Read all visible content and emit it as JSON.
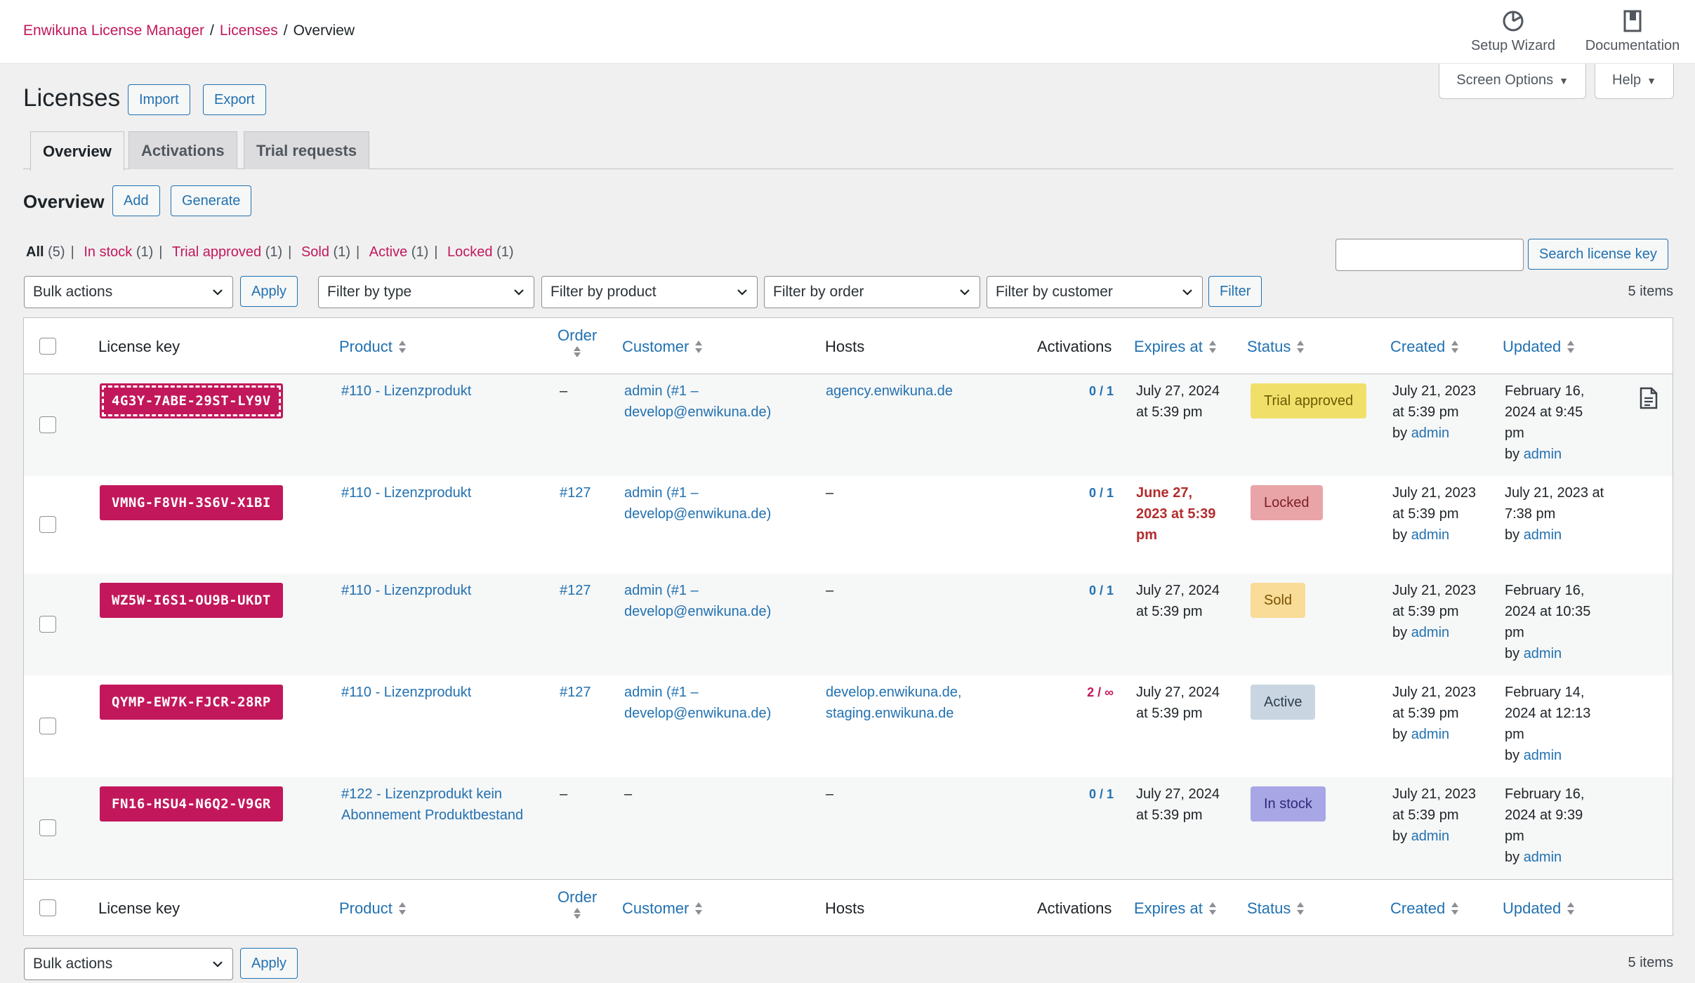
{
  "breadcrumb": {
    "home": "Enwikuna License Manager",
    "section": "Licenses",
    "current": "Overview",
    "separator": "/"
  },
  "top_actions": {
    "wizard_label": "Setup Wizard",
    "wizard_icon": "gauge-icon",
    "docs_label": "Documentation",
    "docs_icon": "book-icon"
  },
  "screen_tabs": {
    "screen_options": "Screen Options",
    "help": "Help"
  },
  "page": {
    "title": "Licenses",
    "import": "Import",
    "export": "Export"
  },
  "tabs": [
    "Overview",
    "Activations",
    "Trial requests"
  ],
  "section": {
    "title": "Overview",
    "add": "Add",
    "generate": "Generate"
  },
  "views": [
    {
      "label": "All",
      "count": "(5)"
    },
    {
      "label": "In stock",
      "count": "(1)"
    },
    {
      "label": "Trial approved",
      "count": "(1)"
    },
    {
      "label": "Sold",
      "count": "(1)"
    },
    {
      "label": "Active",
      "count": "(1)"
    },
    {
      "label": "Locked",
      "count": "(1)"
    }
  ],
  "search": {
    "value": "",
    "button": "Search license key"
  },
  "filters": {
    "bulk_actions": "Bulk actions",
    "apply": "Apply",
    "type": "Filter by type",
    "product": "Filter by product",
    "order": "Filter by order",
    "customer": "Filter by customer",
    "filter_button": "Filter",
    "items": "5 items"
  },
  "columns": {
    "license_key": "License key",
    "product": "Product",
    "order": "Order",
    "customer": "Customer",
    "hosts": "Hosts",
    "activations": "Activations",
    "expires_at": "Expires at",
    "status": "Status",
    "created": "Created",
    "updated": "Updated"
  },
  "rows": [
    {
      "key": "4G3Y-7ABE-29ST-LY9V",
      "product": "#110 - Lizenzprodukt",
      "order": "–",
      "customer_1": "admin (#1 –",
      "customer_2": "develop@enwikuna.de)",
      "host_1": "agency.enwikuna.de",
      "host_2": "",
      "activations": "0 / 1",
      "expires_1": "July 27, 2024",
      "expires_2": "at 5:39 pm",
      "expires_3": "",
      "status": "Trial approved",
      "status_bg": "#f0e06a",
      "status_fg": "#6b5a00",
      "created_1": "July 21, 2023",
      "created_2": "at 5:39 pm",
      "created_by": "by",
      "created_user": "admin",
      "updated_1": "February 16,",
      "updated_2": "2024 at 9:45",
      "updated_3": "pm",
      "updated_by": "by",
      "updated_user": "admin"
    },
    {
      "key": "VMNG-F8VH-3S6V-X1BI",
      "product": "#110 - Lizenzprodukt",
      "order": "#127",
      "customer_1": "admin (#1 –",
      "customer_2": "develop@enwikuna.de)",
      "host_1": "–",
      "host_2": "",
      "activations": "0 / 1",
      "expires_1": "June 27,",
      "expires_2": "2023 at 5:39",
      "expires_3": "pm",
      "status": "Locked",
      "status_bg": "#e9a4a8",
      "status_fg": "#7a1f23",
      "created_1": "July 21, 2023",
      "created_2": "at 5:39 pm",
      "created_by": "by",
      "created_user": "admin",
      "updated_1": "July 21, 2023 at",
      "updated_2": "7:38 pm",
      "updated_3": "",
      "updated_by": "by",
      "updated_user": "admin"
    },
    {
      "key": "WZ5W-I6S1-OU9B-UKDT",
      "product": "#110 - Lizenzprodukt",
      "order": "#127",
      "customer_1": "admin (#1 –",
      "customer_2": "develop@enwikuna.de)",
      "host_1": "–",
      "host_2": "",
      "activations": "0 / 1",
      "expires_1": "July 27, 2024",
      "expires_2": "at 5:39 pm",
      "expires_3": "",
      "status": "Sold",
      "status_bg": "#f8dc98",
      "status_fg": "#7a5300",
      "created_1": "July 21, 2023",
      "created_2": "at 5:39 pm",
      "created_by": "by",
      "created_user": "admin",
      "updated_1": "February 16,",
      "updated_2": "2024 at 10:35",
      "updated_3": "pm",
      "updated_by": "by",
      "updated_user": "admin"
    },
    {
      "key": "QYMP-EW7K-FJCR-28RP",
      "product": "#110 - Lizenzprodukt",
      "order": "#127",
      "customer_1": "admin (#1 –",
      "customer_2": "develop@enwikuna.de)",
      "host_1": "develop.enwikuna.de,",
      "host_2": "staging.enwikuna.de",
      "activations": "2 / ∞",
      "expires_1": "July 27, 2024",
      "expires_2": "at 5:39 pm",
      "expires_3": "",
      "status": "Active",
      "status_bg": "#c9d6e1",
      "status_fg": "#2c3e50",
      "created_1": "July 21, 2023",
      "created_2": "at 5:39 pm",
      "created_by": "by",
      "created_user": "admin",
      "updated_1": "February 14,",
      "updated_2": "2024 at 12:13",
      "updated_3": "pm",
      "updated_by": "by",
      "updated_user": "admin"
    },
    {
      "key": "FN16-HSU4-N6Q2-V9GR",
      "product": "#122 - Lizenzprodukt kein",
      "product_2": "Abonnement Produktbestand",
      "order": "–",
      "customer_1": "–",
      "customer_2": "",
      "host_1": "–",
      "host_2": "",
      "activations": "0 / 1",
      "expires_1": "July 27, 2024",
      "expires_2": "at 5:39 pm",
      "expires_3": "",
      "status": "In stock",
      "status_bg": "#a9a6e6",
      "status_fg": "#2d2a7a",
      "created_1": "July 21, 2023",
      "created_2": "at 5:39 pm",
      "created_by": "by",
      "created_user": "admin",
      "updated_1": "February 16,",
      "updated_2": "2024 at 9:39",
      "updated_3": "pm",
      "updated_by": "by",
      "updated_user": "admin"
    }
  ]
}
